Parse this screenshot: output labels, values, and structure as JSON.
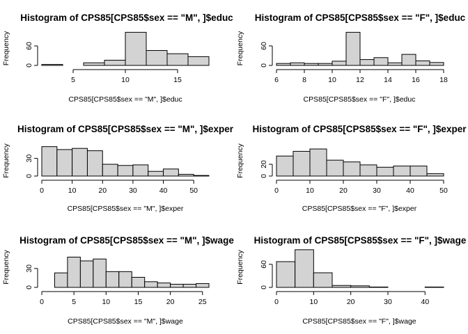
{
  "chart_data": [
    {
      "type": "bar",
      "title": "Histogram of CPS85[CPS85$sex == \"M\", ]$educ",
      "xlabel": "CPS85[CPS85$sex == \"M\", ]$educ",
      "ylabel": "Frequency",
      "xlim": [
        2,
        18
      ],
      "ylim": [
        0,
        105
      ],
      "xticks": [
        5,
        10,
        15
      ],
      "yticks": [
        0,
        60
      ],
      "bins": [
        [
          2,
          4,
          3
        ],
        [
          4,
          6,
          0
        ],
        [
          6,
          8,
          8
        ],
        [
          8,
          10,
          16
        ],
        [
          10,
          12,
          102
        ],
        [
          12,
          14,
          46
        ],
        [
          14,
          16,
          36
        ],
        [
          16,
          18,
          27
        ]
      ]
    },
    {
      "type": "bar",
      "title": "Histogram of CPS85[CPS85$sex == \"F\", ]$educ",
      "xlabel": "CPS85[CPS85$sex == \"F\", ]$educ",
      "ylabel": "Frequency",
      "xlim": [
        6,
        18
      ],
      "ylim": [
        0,
        105
      ],
      "xticks": [
        6,
        8,
        10,
        12,
        14,
        16,
        18
      ],
      "yticks": [
        0,
        60
      ],
      "bins": [
        [
          6,
          7,
          6
        ],
        [
          7,
          8,
          8
        ],
        [
          8,
          9,
          6
        ],
        [
          9,
          10,
          6
        ],
        [
          10,
          11,
          13
        ],
        [
          11,
          12,
          102
        ],
        [
          12,
          13,
          18
        ],
        [
          13,
          14,
          24
        ],
        [
          14,
          15,
          8
        ],
        [
          15,
          16,
          34
        ],
        [
          16,
          17,
          14
        ],
        [
          17,
          18,
          9
        ]
      ]
    },
    {
      "type": "bar",
      "title": "Histogram of CPS85[CPS85$sex == \"M\", ]$exper",
      "xlabel": "CPS85[CPS85$sex == \"M\", ]$exper",
      "ylabel": "Frequency",
      "xlim": [
        0,
        55
      ],
      "ylim": [
        0,
        52
      ],
      "xticks": [
        0,
        10,
        20,
        30,
        40,
        50
      ],
      "yticks": [
        0,
        30
      ],
      "bins": [
        [
          0,
          5,
          50
        ],
        [
          5,
          10,
          45
        ],
        [
          10,
          15,
          47
        ],
        [
          15,
          20,
          43
        ],
        [
          20,
          25,
          20
        ],
        [
          25,
          30,
          18
        ],
        [
          30,
          35,
          19
        ],
        [
          35,
          40,
          8
        ],
        [
          40,
          45,
          12
        ],
        [
          45,
          50,
          3
        ],
        [
          50,
          55,
          1
        ]
      ]
    },
    {
      "type": "bar",
      "title": "Histogram of CPS85[CPS85$sex == \"F\", ]$exper",
      "xlabel": "CPS85[CPS85$sex == \"F\", ]$exper",
      "ylabel": "Frequency",
      "xlim": [
        0,
        50
      ],
      "ylim": [
        0,
        52
      ],
      "xticks": [
        0,
        10,
        20,
        30,
        40,
        50
      ],
      "yticks": [
        0,
        20
      ],
      "bins": [
        [
          0,
          5,
          34
        ],
        [
          5,
          10,
          42
        ],
        [
          10,
          15,
          46
        ],
        [
          15,
          20,
          27
        ],
        [
          20,
          25,
          24
        ],
        [
          25,
          30,
          19
        ],
        [
          30,
          35,
          15
        ],
        [
          35,
          40,
          17
        ],
        [
          40,
          45,
          17
        ],
        [
          45,
          50,
          4
        ]
      ]
    },
    {
      "type": "bar",
      "title": "Histogram of CPS85[CPS85$sex == \"M\", ]$wage",
      "xlabel": "CPS85[CPS85$sex == \"M\", ]$wage",
      "ylabel": "Frequency",
      "xlim": [
        0,
        26
      ],
      "ylim": [
        0,
        64
      ],
      "xticks": [
        0,
        5,
        10,
        15,
        20,
        25
      ],
      "yticks": [
        0,
        30
      ],
      "bins": [
        [
          2,
          4,
          23
        ],
        [
          4,
          6,
          48
        ],
        [
          6,
          8,
          42
        ],
        [
          8,
          10,
          45
        ],
        [
          10,
          12,
          25
        ],
        [
          12,
          14,
          25
        ],
        [
          14,
          16,
          16
        ],
        [
          16,
          18,
          9
        ],
        [
          18,
          20,
          7
        ],
        [
          20,
          22,
          5
        ],
        [
          22,
          24,
          5
        ],
        [
          24,
          26,
          6
        ]
      ]
    },
    {
      "type": "bar",
      "title": "Histogram of CPS85[CPS85$sex == \"F\", ]$wage",
      "xlabel": "CPS85[CPS85$sex == \"F\", ]$wage",
      "ylabel": "Frequency",
      "xlim": [
        0,
        45
      ],
      "ylim": [
        0,
        105
      ],
      "xticks": [
        0,
        10,
        20,
        30,
        40
      ],
      "yticks": [
        0,
        60
      ],
      "bins": [
        [
          0,
          5,
          67
        ],
        [
          5,
          10,
          98
        ],
        [
          10,
          15,
          38
        ],
        [
          15,
          20,
          5
        ],
        [
          20,
          25,
          4
        ],
        [
          25,
          30,
          1
        ],
        [
          30,
          35,
          0
        ],
        [
          35,
          40,
          0
        ],
        [
          40,
          45,
          1
        ]
      ]
    }
  ]
}
